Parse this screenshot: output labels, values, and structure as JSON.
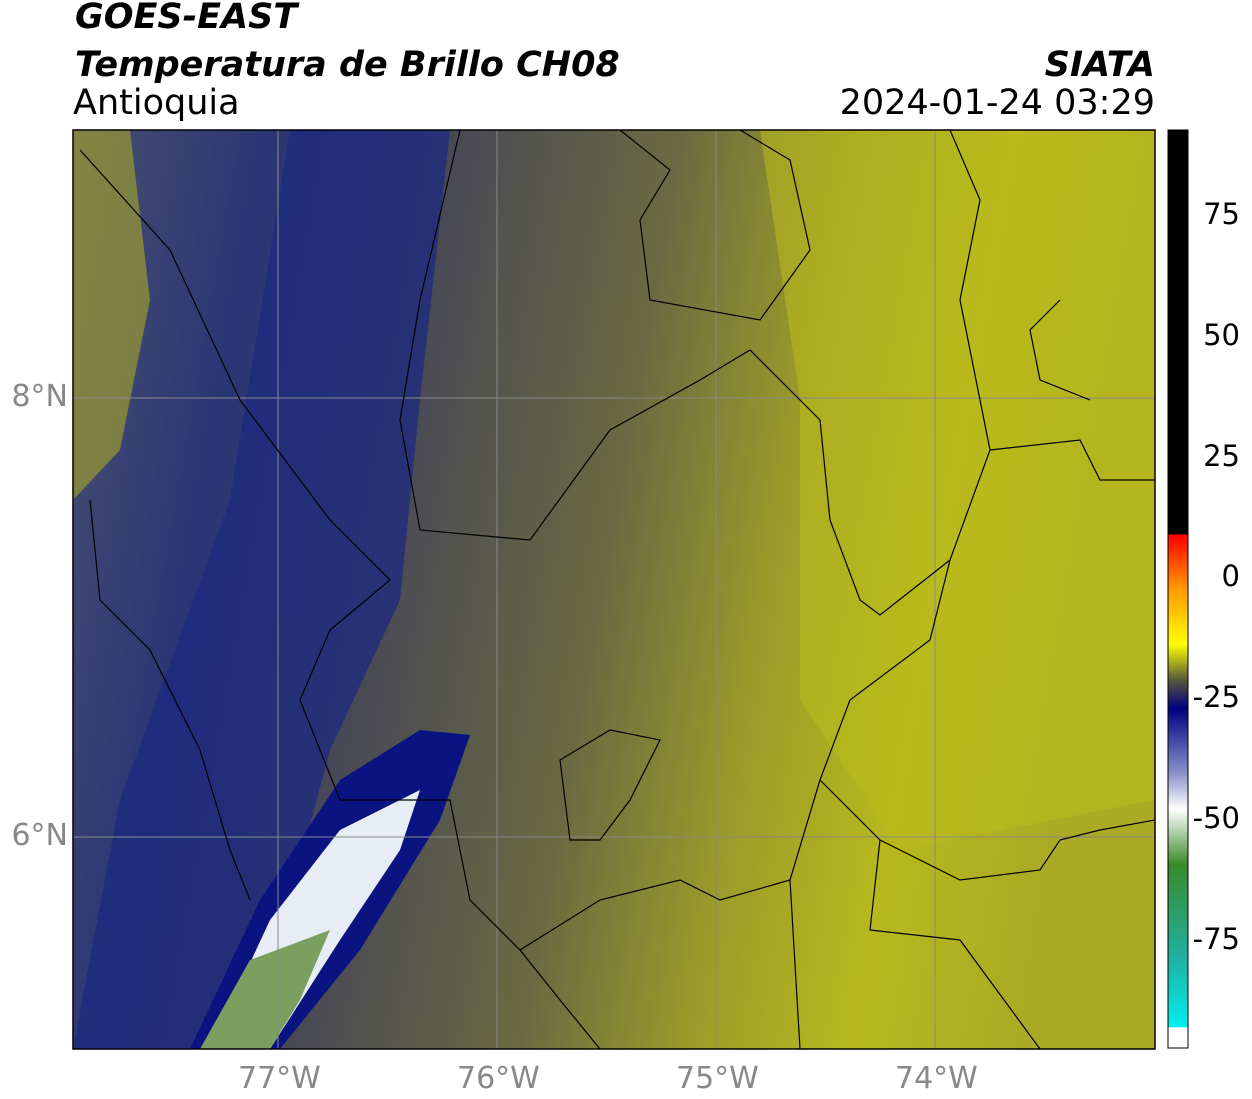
{
  "header": {
    "title": "GOES-EAST",
    "subtitle": "Temperatura de Brillo CH08",
    "region": "Antioquia",
    "source": "SIATA",
    "datetime": "2024-01-24 03:29"
  },
  "map": {
    "lon_labels": [
      "77°W",
      "76°W",
      "75°W",
      "74°W"
    ],
    "lat_labels": [
      "8°N",
      "6°N"
    ]
  },
  "colorbar": {
    "tick_labels": [
      "75",
      "50",
      "25",
      "0",
      "-25",
      "-50",
      "-75"
    ]
  }
}
